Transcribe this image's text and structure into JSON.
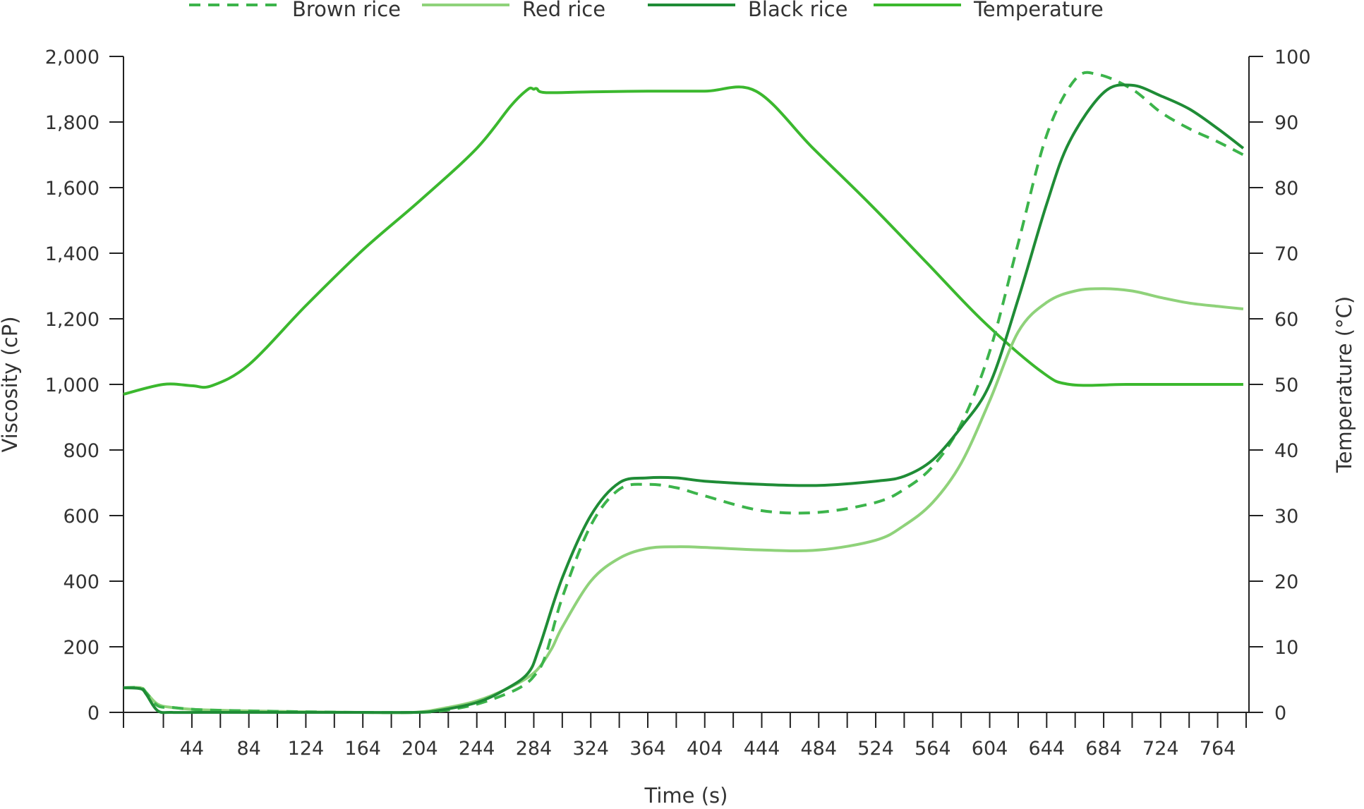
{
  "chart_data": {
    "type": "line",
    "title": "",
    "xlabel": "Time (s)",
    "ylabel": "Viscosity (cP)",
    "y2label": "Temperature (°C)",
    "xlim": [
      -4,
      786
    ],
    "ylim": [
      0,
      2000
    ],
    "y2lim": [
      0,
      100
    ],
    "xticks": [
      44,
      84,
      124,
      164,
      204,
      244,
      284,
      324,
      364,
      404,
      444,
      484,
      524,
      564,
      604,
      644,
      684,
      724,
      764
    ],
    "xtick_labels": [
      "44",
      "84",
      "124",
      "164",
      "204",
      "244",
      "284",
      "324",
      "364",
      "404",
      "444",
      "484",
      "524",
      "564",
      "604",
      "644",
      "684",
      "724",
      "764"
    ],
    "yticks": [
      0,
      200,
      400,
      600,
      800,
      1000,
      1200,
      1400,
      1600,
      1800,
      2000
    ],
    "ytick_labels": [
      "0",
      "200",
      "400",
      "600",
      "800",
      "1,000",
      "1,200",
      "1,400",
      "1,600",
      "1,800",
      "2,000"
    ],
    "y2ticks": [
      0,
      10,
      20,
      30,
      40,
      50,
      60,
      70,
      80,
      90,
      100
    ],
    "y2tick_labels": [
      "0",
      "10",
      "20",
      "30",
      "40",
      "50",
      "60",
      "70",
      "80",
      "90",
      "100"
    ],
    "grid": false,
    "legend_position": "top",
    "series": [
      {
        "name": "Brown rice",
        "axis": "left",
        "color": "#3cb44b",
        "dash": "dashed",
        "x": [
          -4,
          8,
          12,
          20,
          30,
          50,
          80,
          120,
          160,
          200,
          220,
          244,
          264,
          276,
          284,
          292,
          304,
          324,
          344,
          364,
          384,
          404,
          444,
          484,
          524,
          544,
          564,
          584,
          604,
          624,
          644,
          664,
          680,
          704,
          724,
          744,
          764,
          782
        ],
        "y": [
          75,
          75,
          60,
          20,
          15,
          8,
          5,
          2,
          0,
          0,
          5,
          25,
          55,
          80,
          110,
          170,
          350,
          570,
          680,
          695,
          685,
          660,
          615,
          610,
          640,
          680,
          750,
          880,
          1100,
          1430,
          1760,
          1930,
          1945,
          1900,
          1830,
          1780,
          1740,
          1700
        ]
      },
      {
        "name": "Red rice",
        "axis": "left",
        "color": "#8fd27a",
        "dash": "solid",
        "x": [
          -4,
          8,
          12,
          20,
          30,
          50,
          80,
          120,
          160,
          200,
          224,
          244,
          264,
          284,
          296,
          304,
          324,
          344,
          364,
          384,
          404,
          444,
          484,
          524,
          544,
          564,
          584,
          604,
          624,
          644,
          664,
          684,
          704,
          724,
          744,
          764,
          782
        ],
        "y": [
          75,
          75,
          60,
          25,
          15,
          8,
          5,
          2,
          0,
          0,
          15,
          35,
          70,
          120,
          190,
          260,
          400,
          470,
          500,
          505,
          503,
          495,
          495,
          525,
          570,
          640,
          760,
          950,
          1160,
          1250,
          1285,
          1292,
          1285,
          1265,
          1248,
          1238,
          1230
        ]
      },
      {
        "name": "Black rice",
        "axis": "left",
        "color": "#1f8c36",
        "dash": "solid",
        "x": [
          -4,
          8,
          12,
          20,
          30,
          50,
          80,
          120,
          160,
          200,
          216,
          244,
          264,
          280,
          288,
          304,
          324,
          344,
          364,
          384,
          404,
          444,
          484,
          524,
          544,
          564,
          584,
          604,
          624,
          644,
          660,
          684,
          704,
          724,
          744,
          764,
          782
        ],
        "y": [
          75,
          72,
          55,
          5,
          0,
          0,
          0,
          0,
          0,
          0,
          5,
          30,
          70,
          120,
          200,
          410,
          600,
          700,
          715,
          715,
          705,
          695,
          692,
          705,
          720,
          770,
          870,
          1000,
          1260,
          1550,
          1740,
          1890,
          1912,
          1880,
          1840,
          1780,
          1720
        ]
      },
      {
        "name": "Temperature",
        "axis": "right",
        "color": "#3bb82e",
        "dash": "solid",
        "x": [
          -4,
          24,
          44,
          58,
          84,
          124,
          164,
          204,
          244,
          268,
          280,
          284,
          286,
          292,
          324,
          364,
          404,
          440,
          480,
          520,
          560,
          600,
          640,
          660,
          700,
          740,
          782
        ],
        "y": [
          48.5,
          50,
          49.8,
          49.8,
          53,
          62,
          70.5,
          78,
          86,
          92.5,
          95,
          95,
          95.1,
          94.5,
          94.6,
          94.7,
          94.7,
          94.7,
          86,
          77.5,
          68.5,
          59.5,
          52,
          50,
          50,
          50,
          50
        ]
      }
    ]
  }
}
